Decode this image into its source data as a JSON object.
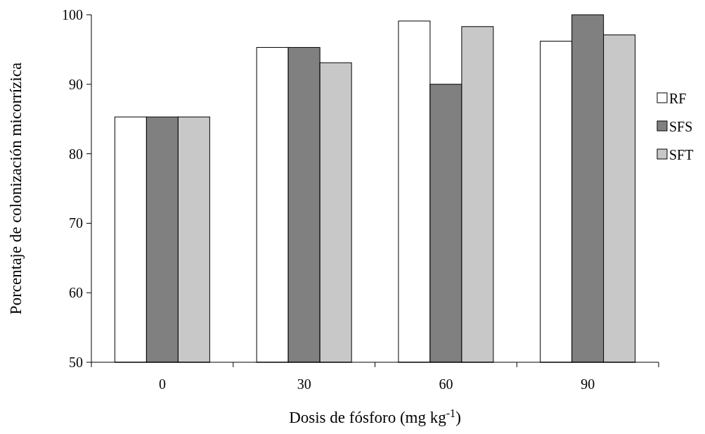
{
  "chart_data": {
    "type": "bar",
    "xlabel": "Dosis de fósforo (mg kg$^{-1}$)",
    "ylabel": "Porcentaje de colonización micorrízica",
    "categories": [
      "0",
      "30",
      "60",
      "90"
    ],
    "series": [
      {
        "name": "RF",
        "color": "#ffffff",
        "values": [
          85.3,
          95.3,
          99.1,
          96.2
        ]
      },
      {
        "name": "SFS",
        "color": "#808080",
        "values": [
          85.3,
          95.3,
          90.0,
          100
        ]
      },
      {
        "name": "SFT",
        "color": "#c8c8c8",
        "values": [
          85.3,
          93.1,
          98.3,
          97.1
        ]
      }
    ],
    "ylim": [
      50,
      100
    ],
    "yticks": [
      50,
      60,
      70,
      80,
      90,
      100
    ],
    "legend": "right"
  }
}
